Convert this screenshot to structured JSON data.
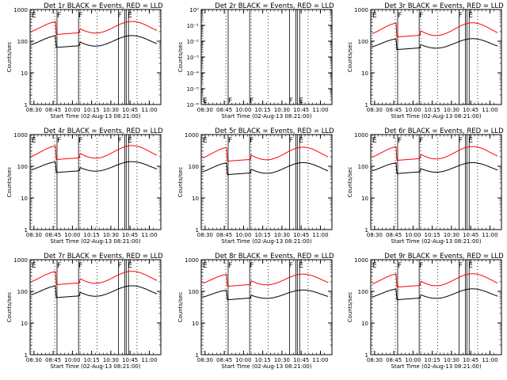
{
  "figure": {
    "colors": {
      "events": "#000000",
      "lld": "#ff0000",
      "axes": "#000000",
      "background": "#ffffff"
    }
  },
  "chart_data": [
    {
      "type": "line",
      "panel": 1,
      "title": "Det 1r BLACK = Events, RED = LLD",
      "xlabel": "Start Time (02-Aug-13 08:21:00)",
      "ylabel": "Counts/sec",
      "yscale": "log",
      "ylim": [
        1,
        1000
      ],
      "ytick_labels": [
        "1",
        "10",
        "100",
        "1000"
      ],
      "x_tick_labels": [
        "08:30",
        "08:45",
        "10:00",
        "10:15",
        "10:30",
        "10:45",
        "11:00"
      ],
      "flags": [
        "E",
        "F",
        "F",
        "F",
        "E"
      ],
      "series": [
        {
          "name": "Events",
          "color": "#000000",
          "base": 70,
          "peak": 150
        },
        {
          "name": "LLD",
          "color": "#ff0000",
          "base": 180,
          "peak": 420
        }
      ]
    },
    {
      "type": "line",
      "panel": 2,
      "title": "Det 2r BLACK = Events, RED = LLD",
      "xlabel": "Start Time (02-Aug-13 08:21:00)",
      "ylabel": "Counts/sec",
      "yscale": "log",
      "ylim": [
        1,
        1e-06
      ],
      "ytick_labels": [
        "10⁻⁶",
        "10⁻⁵",
        "10⁻⁴",
        "10⁻³",
        "10⁻²",
        "10⁻¹",
        "10⁰"
      ],
      "x_tick_labels": [
        "08:30",
        "08:45",
        "10:00",
        "10:15",
        "10:30",
        "10:45",
        "11:00"
      ],
      "flags": [
        "E",
        "F",
        "F",
        "F",
        "E"
      ],
      "series": []
    },
    {
      "type": "line",
      "panel": 3,
      "title": "Det 3r BLACK = Events, RED = LLD",
      "xlabel": "Start Time (02-Aug-13 08:21:00)",
      "ylabel": "Counts/sec",
      "yscale": "log",
      "ylim": [
        1,
        1000
      ],
      "ytick_labels": [
        "1",
        "10",
        "100",
        "1000"
      ],
      "x_tick_labels": [
        "08:30",
        "08:45",
        "10:00",
        "10:15",
        "10:30",
        "10:45",
        "11:00"
      ],
      "flags": [
        "E",
        "F",
        "F",
        "F",
        "E"
      ],
      "series": [
        {
          "name": "Events",
          "color": "#000000",
          "base": 60,
          "peak": 120
        },
        {
          "name": "LLD",
          "color": "#ff0000",
          "base": 150,
          "peak": 380
        }
      ]
    },
    {
      "type": "line",
      "panel": 4,
      "title": "Det 4r BLACK = Events, RED = LLD",
      "xlabel": "Start Time (02-Aug-13 08:21:00)",
      "ylabel": "Counts/sec",
      "yscale": "log",
      "ylim": [
        1,
        1000
      ],
      "ytick_labels": [
        "1",
        "10",
        "100",
        "1000"
      ],
      "x_tick_labels": [
        "08:30",
        "08:45",
        "10:00",
        "10:15",
        "10:30",
        "10:45",
        "11:00"
      ],
      "flags": [
        "E",
        "F",
        "F",
        "F",
        "E"
      ],
      "series": [
        {
          "name": "Events",
          "color": "#000000",
          "base": 70,
          "peak": 140
        },
        {
          "name": "LLD",
          "color": "#ff0000",
          "base": 180,
          "peak": 450
        }
      ]
    },
    {
      "type": "line",
      "panel": 5,
      "title": "Det 5r BLACK = Events, RED = LLD",
      "xlabel": "Start Time (02-Aug-13 08:21:00)",
      "ylabel": "Counts/sec",
      "yscale": "log",
      "ylim": [
        1,
        1000
      ],
      "ytick_labels": [
        "1",
        "10",
        "100",
        "1000"
      ],
      "x_tick_labels": [
        "08:30",
        "08:45",
        "10:00",
        "10:15",
        "10:30",
        "10:45",
        "11:00"
      ],
      "flags": [
        "E",
        "F",
        "F",
        "F",
        "E"
      ],
      "series": [
        {
          "name": "Events",
          "color": "#000000",
          "base": 60,
          "peak": 130
        },
        {
          "name": "LLD",
          "color": "#ff0000",
          "base": 160,
          "peak": 400
        }
      ]
    },
    {
      "type": "line",
      "panel": 6,
      "title": "Det 6r BLACK = Events, RED = LLD",
      "xlabel": "Start Time (02-Aug-13 08:21:00)",
      "ylabel": "Counts/sec",
      "yscale": "log",
      "ylim": [
        1,
        1000
      ],
      "ytick_labels": [
        "1",
        "10",
        "100",
        "1000"
      ],
      "x_tick_labels": [
        "08:30",
        "08:45",
        "10:00",
        "10:15",
        "10:30",
        "10:45",
        "11:00"
      ],
      "flags": [
        "E",
        "F",
        "F",
        "F",
        "E"
      ],
      "series": [
        {
          "name": "Events",
          "color": "#000000",
          "base": 65,
          "peak": 130
        },
        {
          "name": "LLD",
          "color": "#ff0000",
          "base": 170,
          "peak": 420
        }
      ]
    },
    {
      "type": "line",
      "panel": 7,
      "title": "Det 7r BLACK = Events, RED = LLD",
      "xlabel": "Start Time (02-Aug-13 08:21:00)",
      "ylabel": "Counts/sec",
      "yscale": "log",
      "ylim": [
        1,
        1000
      ],
      "ytick_labels": [
        "1",
        "10",
        "100",
        "1000"
      ],
      "x_tick_labels": [
        "08:30",
        "08:45",
        "10:00",
        "10:15",
        "10:30",
        "10:45",
        "11:00"
      ],
      "flags": [
        "E",
        "F",
        "F",
        "F",
        "E"
      ],
      "series": [
        {
          "name": "Events",
          "color": "#000000",
          "base": 70,
          "peak": 150
        },
        {
          "name": "LLD",
          "color": "#ff0000",
          "base": 180,
          "peak": 430
        }
      ]
    },
    {
      "type": "line",
      "panel": 8,
      "title": "Det 8r BLACK = Events, RED = LLD",
      "xlabel": "Start Time (02-Aug-13 08:21:00)",
      "ylabel": "Counts/sec",
      "yscale": "log",
      "ylim": [
        1,
        1000
      ],
      "ytick_labels": [
        "1",
        "10",
        "100",
        "1000"
      ],
      "x_tick_labels": [
        "08:30",
        "08:45",
        "10:00",
        "10:15",
        "10:30",
        "10:45",
        "11:00"
      ],
      "flags": [
        "E",
        "F",
        "F",
        "F",
        "E"
      ],
      "series": [
        {
          "name": "Events",
          "color": "#000000",
          "base": 60,
          "peak": 110
        },
        {
          "name": "LLD",
          "color": "#ff0000",
          "base": 160,
          "peak": 350
        }
      ]
    },
    {
      "type": "line",
      "panel": 9,
      "title": "Det 9r BLACK = Events, RED = LLD",
      "xlabel": "Start Time (02-Aug-13 08:21:00)",
      "ylabel": "Counts/sec",
      "yscale": "log",
      "ylim": [
        1,
        1000
      ],
      "ytick_labels": [
        "1",
        "10",
        "100",
        "1000"
      ],
      "x_tick_labels": [
        "08:30",
        "08:45",
        "10:00",
        "10:15",
        "10:30",
        "10:45",
        "11:00"
      ],
      "flags": [
        "E",
        "F",
        "F",
        "F",
        "E"
      ],
      "series": [
        {
          "name": "Events",
          "color": "#000000",
          "base": 60,
          "peak": 120
        },
        {
          "name": "LLD",
          "color": "#ff0000",
          "base": 150,
          "peak": 360
        }
      ]
    }
  ]
}
